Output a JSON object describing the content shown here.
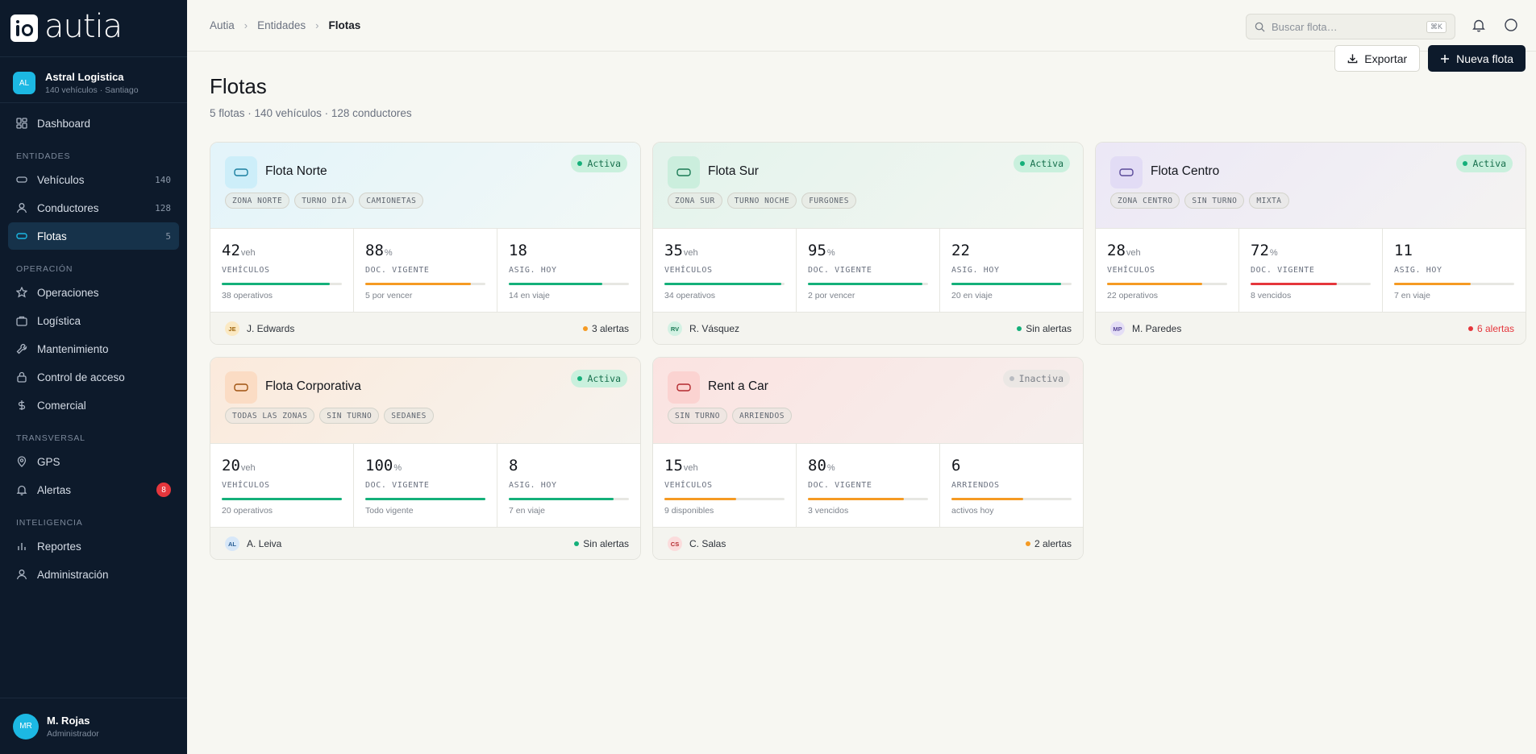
{
  "app": {
    "logo_text": "autia"
  },
  "org": {
    "initials": "AL",
    "name": "Astral Logistica",
    "sub": "140 vehículos · Santiago"
  },
  "nav": {
    "dashboard": "Dashboard",
    "section_entidades": "ENTIDADES",
    "vehiculos": {
      "label": "Vehículos",
      "count": "140"
    },
    "conductores": {
      "label": "Conductores",
      "count": "128"
    },
    "flotas": {
      "label": "Flotas",
      "count": "5"
    },
    "section_operacion": "OPERACIÓN",
    "operaciones": "Operaciones",
    "logistica": "Logística",
    "mantenimiento": "Mantenimiento",
    "control_acceso": "Control de acceso",
    "comercial": "Comercial",
    "section_transversal": "TRANSVERSAL",
    "gps": "GPS",
    "alertas": {
      "label": "Alertas",
      "badge": "8"
    },
    "section_inteligencia": "INTELIGENCIA",
    "reportes": "Reportes",
    "administracion": "Administración"
  },
  "user": {
    "initials": "MR",
    "name": "M. Rojas",
    "role": "Administrador"
  },
  "breadcrumb": {
    "root": "Autia",
    "parent": "Entidades",
    "current": "Flotas"
  },
  "search": {
    "placeholder": "Buscar flota…",
    "shortcut": "⌘K"
  },
  "header": {
    "title": "Flotas",
    "subtitle": "5 flotas · 140 vehículos · 128 conductores",
    "export_label": "Exportar",
    "new_label": "Nueva flota"
  },
  "colors": {
    "green": "#14b07a",
    "orange": "#f59a23",
    "red": "#e5363c"
  },
  "fleets": [
    {
      "name": "Flota Norte",
      "status": "Activa",
      "active": true,
      "tags": [
        "ZONA NORTE",
        "TURNO DÍA",
        "CAMIONETAS"
      ],
      "metrics": [
        {
          "value": "42",
          "unit": "veh",
          "label": "VEHÍCULOS",
          "note": "38 operativos",
          "progress": 0.9,
          "color": "green"
        },
        {
          "value": "88",
          "unit": "%",
          "label": "DOC. VIGENTE",
          "note": "5 por vencer",
          "progress": 0.88,
          "color": "orange"
        },
        {
          "value": "18",
          "unit": "",
          "label": "ASIG. HOY",
          "note": "14 en viaje",
          "progress": 0.78,
          "color": "green"
        }
      ],
      "owner_initials": "JE",
      "owner": "J. Edwards",
      "alerts": "3 alertas",
      "alert_color": "orange"
    },
    {
      "name": "Flota Sur",
      "status": "Activa",
      "active": true,
      "tags": [
        "ZONA SUR",
        "TURNO NOCHE",
        "FURGONES"
      ],
      "metrics": [
        {
          "value": "35",
          "unit": "veh",
          "label": "VEHÍCULOS",
          "note": "34 operativos",
          "progress": 0.97,
          "color": "green"
        },
        {
          "value": "95",
          "unit": "%",
          "label": "DOC. VIGENTE",
          "note": "2 por vencer",
          "progress": 0.95,
          "color": "green"
        },
        {
          "value": "22",
          "unit": "",
          "label": "ASIG. HOY",
          "note": "20 en viaje",
          "progress": 0.91,
          "color": "green"
        }
      ],
      "owner_initials": "RV",
      "owner": "R. Vásquez",
      "alerts": "Sin alertas",
      "alert_color": "green"
    },
    {
      "name": "Flota Centro",
      "status": "Activa",
      "active": true,
      "tags": [
        "ZONA CENTRO",
        "SIN TURNO",
        "MIXTA"
      ],
      "metrics": [
        {
          "value": "28",
          "unit": "veh",
          "label": "VEHÍCULOS",
          "note": "22 operativos",
          "progress": 0.79,
          "color": "orange"
        },
        {
          "value": "72",
          "unit": "%",
          "label": "DOC. VIGENTE",
          "note": "8 vencidos",
          "progress": 0.72,
          "color": "red"
        },
        {
          "value": "11",
          "unit": "",
          "label": "ASIG. HOY",
          "note": "7 en viaje",
          "progress": 0.64,
          "color": "orange"
        }
      ],
      "owner_initials": "MP",
      "owner": "M. Paredes",
      "alerts": "6 alertas",
      "alert_color": "red"
    },
    {
      "name": "Flota Corporativa",
      "status": "Activa",
      "active": true,
      "tags": [
        "TODAS LAS ZONAS",
        "SIN TURNO",
        "SEDANES"
      ],
      "metrics": [
        {
          "value": "20",
          "unit": "veh",
          "label": "VEHÍCULOS",
          "note": "20 operativos",
          "progress": 1.0,
          "color": "green"
        },
        {
          "value": "100",
          "unit": "%",
          "label": "DOC. VIGENTE",
          "note": "Todo vigente",
          "progress": 1.0,
          "color": "green"
        },
        {
          "value": "8",
          "unit": "",
          "label": "ASIG. HOY",
          "note": "7 en viaje",
          "progress": 0.875,
          "color": "green"
        }
      ],
      "owner_initials": "AL",
      "owner": "A. Leiva",
      "alerts": "Sin alertas",
      "alert_color": "green"
    },
    {
      "name": "Rent a Car",
      "status": "Inactiva",
      "active": false,
      "tags": [
        "SIN TURNO",
        "ARRIENDOS"
      ],
      "metrics": [
        {
          "value": "15",
          "unit": "veh",
          "label": "VEHÍCULOS",
          "note": "9 disponibles",
          "progress": 0.6,
          "color": "orange"
        },
        {
          "value": "80",
          "unit": "%",
          "label": "DOC. VIGENTE",
          "note": "3 vencidos",
          "progress": 0.8,
          "color": "orange"
        },
        {
          "value": "6",
          "unit": "",
          "label": "ARRIENDOS",
          "note": "activos hoy",
          "progress": 0.6,
          "color": "orange"
        }
      ],
      "owner_initials": "CS",
      "owner": "C. Salas",
      "alerts": "2 alertas",
      "alert_color": "orange"
    }
  ]
}
